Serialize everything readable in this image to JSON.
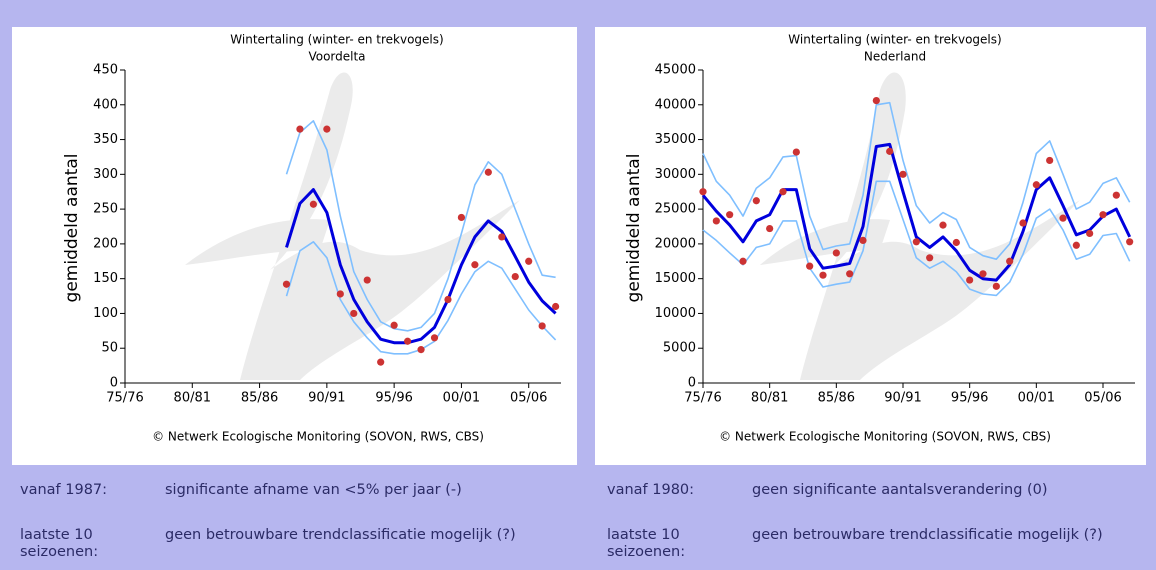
{
  "chart_data": [
    {
      "type": "line",
      "title": "Wintertaling (winter- en trekvogels)",
      "subtitle": "Voordelta",
      "ylabel": "gemiddeld aantal",
      "credit": "© Netwerk Ecologische Monitoring (SOVON, RWS, CBS)",
      "x": [
        1987,
        1988,
        1989,
        1990,
        1991,
        1992,
        1993,
        1994,
        1995,
        1996,
        1997,
        1998,
        1999,
        2000,
        2001,
        2002,
        2003,
        2004,
        2005,
        2006,
        2007
      ],
      "xlim": [
        1975,
        2007.4
      ],
      "xticks": [
        {
          "value": 1975,
          "label": "75/76"
        },
        {
          "value": 1980,
          "label": "80/81"
        },
        {
          "value": 1985,
          "label": "85/86"
        },
        {
          "value": 1990,
          "label": "90/91"
        },
        {
          "value": 1995,
          "label": "95/96"
        },
        {
          "value": 2000,
          "label": "00/01"
        },
        {
          "value": 2005,
          "label": "05/06"
        }
      ],
      "ylim": [
        0,
        450
      ],
      "yticks": [
        0,
        50,
        100,
        150,
        200,
        250,
        300,
        350,
        400,
        450
      ],
      "series": [
        {
          "color": "#7fbfff",
          "width": 1.6,
          "marker": false,
          "values": [
            300,
            360,
            377,
            335,
            240,
            160,
            120,
            88,
            78,
            75,
            80,
            100,
            150,
            215,
            285,
            318,
            300,
            250,
            200,
            155,
            152
          ]
        },
        {
          "color": "#7fbfff",
          "width": 1.6,
          "marker": false,
          "values": [
            125,
            190,
            203,
            180,
            120,
            88,
            65,
            45,
            42,
            42,
            48,
            60,
            90,
            128,
            160,
            175,
            165,
            135,
            105,
            82,
            62
          ]
        },
        {
          "color": "#0000dd",
          "width": 3,
          "marker": false,
          "values": [
            195,
            258,
            278,
            245,
            170,
            120,
            88,
            63,
            58,
            58,
            63,
            80,
            120,
            170,
            210,
            233,
            218,
            182,
            145,
            118,
            100
          ]
        },
        {
          "color": "#cc3333",
          "width": 0,
          "marker": true,
          "values": [
            142,
            365,
            257,
            365,
            128,
            100,
            148,
            30,
            83,
            60,
            48,
            65,
            120,
            238,
            170,
            303,
            210,
            153,
            175,
            82,
            110
          ]
        }
      ],
      "trend_rows": [
        {
          "label": "vanaf 1987:",
          "text": "significante afname van <5% per jaar (-)"
        },
        {
          "label": "laatste 10 seizoenen:",
          "text": "geen betrouwbare trendclassificatie mogelijk (?)"
        }
      ]
    },
    {
      "type": "line",
      "title": "Wintertaling (winter- en trekvogels)",
      "subtitle": "Nederland",
      "ylabel": "gemiddeld aantal",
      "credit": "© Netwerk Ecologische Monitoring (SOVON, RWS, CBS)",
      "x": [
        1975,
        1976,
        1977,
        1978,
        1979,
        1980,
        1981,
        1982,
        1983,
        1984,
        1985,
        1986,
        1987,
        1988,
        1989,
        1990,
        1991,
        1992,
        1993,
        1994,
        1995,
        1996,
        1997,
        1998,
        1999,
        2000,
        2001,
        2002,
        2003,
        2004,
        2005,
        2006,
        2007
      ],
      "xlim": [
        1975,
        2007.4
      ],
      "xticks": [
        {
          "value": 1975,
          "label": "75/76"
        },
        {
          "value": 1980,
          "label": "80/81"
        },
        {
          "value": 1985,
          "label": "85/86"
        },
        {
          "value": 1990,
          "label": "90/91"
        },
        {
          "value": 1995,
          "label": "95/96"
        },
        {
          "value": 2000,
          "label": "00/01"
        },
        {
          "value": 2005,
          "label": "05/06"
        }
      ],
      "ylim": [
        0,
        45000
      ],
      "yticks": [
        0,
        5000,
        10000,
        15000,
        20000,
        25000,
        30000,
        35000,
        40000,
        45000
      ],
      "series": [
        {
          "color": "#7fbfff",
          "width": 1.6,
          "marker": false,
          "values": [
            33000,
            29000,
            27000,
            24000,
            28000,
            29500,
            32500,
            32700,
            24000,
            19200,
            19700,
            20000,
            27000,
            40000,
            40300,
            32000,
            25500,
            23000,
            24500,
            23500,
            19500,
            18300,
            17800,
            20000,
            26000,
            33000,
            34800,
            30000,
            25000,
            26000,
            28700,
            29500,
            26000
          ]
        },
        {
          "color": "#7fbfff",
          "width": 1.6,
          "marker": false,
          "values": [
            22000,
            20500,
            18700,
            17000,
            19500,
            20000,
            23300,
            23300,
            16500,
            13800,
            14200,
            14500,
            19000,
            29000,
            29000,
            23500,
            18000,
            16500,
            17500,
            16000,
            13500,
            12800,
            12600,
            14500,
            18500,
            23700,
            25000,
            22000,
            17800,
            18500,
            21200,
            21500,
            17500
          ]
        },
        {
          "color": "#0000dd",
          "width": 3,
          "marker": false,
          "values": [
            27000,
            24700,
            22700,
            20300,
            23300,
            24200,
            27800,
            27800,
            19300,
            16500,
            16800,
            17200,
            22500,
            34000,
            34300,
            27500,
            21000,
            19500,
            21000,
            19000,
            16200,
            15000,
            14800,
            17000,
            21800,
            27800,
            29500,
            25500,
            21300,
            22000,
            24000,
            25000,
            21000
          ]
        },
        {
          "color": "#cc3333",
          "width": 0,
          "marker": true,
          "values": [
            27500,
            23300,
            24200,
            17500,
            26200,
            22200,
            27500,
            33200,
            16800,
            15500,
            18700,
            15700,
            20500,
            40600,
            33300,
            30000,
            20300,
            18000,
            22700,
            20200,
            14800,
            15700,
            13900,
            17500,
            23000,
            28500,
            32000,
            23700,
            19800,
            21500,
            24200,
            27000,
            20300
          ]
        }
      ],
      "trend_rows": [
        {
          "label": "vanaf 1980:",
          "text": "geen significante aantalsverandering (0)"
        },
        {
          "label": "laatste 10 seizoenen:",
          "text": "geen betrouwbare trendclassificatie mogelijk (?)"
        }
      ]
    }
  ]
}
